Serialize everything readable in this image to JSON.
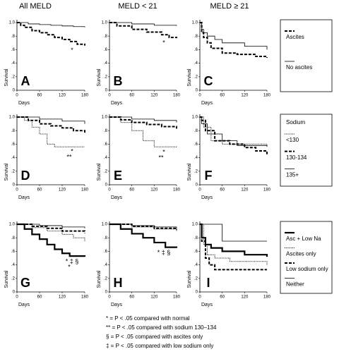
{
  "column_headers": [
    "All MELD",
    "MELD < 21",
    "MELD ≥ 21"
  ],
  "footnotes": [
    "* = P < .05 compared with normal",
    "** = P < .05 compared with sodium 130–134",
    "§ = P < .05 compared with ascites only",
    "‡ = P < .05 compared with low sodium only"
  ],
  "chart_data": [
    {
      "type": "step",
      "title": "A",
      "y_label": "Survival",
      "x_label": "Days",
      "xlim": [
        0,
        180
      ],
      "xticks": [
        0,
        60,
        120,
        180
      ],
      "ylim": [
        0,
        1
      ],
      "yticks": [
        0,
        {
          "value": 0.2,
          "label": ".2"
        },
        {
          "value": 0.4,
          "label": ".4"
        },
        {
          "value": 0.6,
          "label": ".6"
        },
        {
          "value": 0.8,
          "label": ".8"
        },
        {
          "value": 1,
          "label": "1.0"
        }
      ],
      "annotations": [
        "*"
      ],
      "series": [
        {
          "name": "Ascites",
          "color": "#000",
          "style": "dashed",
          "x": [
            0,
            10,
            20,
            40,
            60,
            80,
            100,
            120,
            140,
            160,
            180
          ],
          "values": [
            1,
            0.96,
            0.93,
            0.88,
            0.85,
            0.82,
            0.78,
            0.75,
            0.72,
            0.68,
            0.66
          ]
        },
        {
          "name": "No ascites",
          "color": "#000",
          "style": "solid",
          "x": [
            0,
            30,
            60,
            90,
            120,
            150,
            180
          ],
          "values": [
            1,
            0.98,
            0.97,
            0.96,
            0.95,
            0.94,
            0.93
          ]
        }
      ]
    },
    {
      "type": "step",
      "title": "B",
      "y_label": "Survival",
      "x_label": "Days",
      "xlim": [
        0,
        180
      ],
      "xticks": [
        0,
        60,
        120,
        180
      ],
      "ylim": [
        0,
        1
      ],
      "yticks": [
        0,
        {
          "value": 0.2,
          "label": ".2"
        },
        {
          "value": 0.4,
          "label": ".4"
        },
        {
          "value": 0.6,
          "label": ".6"
        },
        {
          "value": 0.8,
          "label": ".8"
        },
        {
          "value": 1,
          "label": "1.0"
        }
      ],
      "annotations": [
        "*"
      ],
      "series": [
        {
          "name": "Ascites",
          "color": "#000",
          "style": "dashed",
          "x": [
            0,
            20,
            60,
            100,
            140,
            160,
            180
          ],
          "values": [
            1,
            0.95,
            0.9,
            0.86,
            0.82,
            0.78,
            0.77
          ]
        },
        {
          "name": "No ascites",
          "color": "#000",
          "style": "solid",
          "x": [
            0,
            60,
            120,
            180
          ],
          "values": [
            1,
            0.98,
            0.96,
            0.95
          ]
        }
      ]
    },
    {
      "type": "step",
      "title": "C",
      "y_label": "Survival",
      "x_label": "Days",
      "xlim": [
        0,
        180
      ],
      "xticks": [
        0,
        60,
        120,
        180
      ],
      "ylim": [
        0,
        1
      ],
      "yticks": [
        0,
        {
          "value": 0.2,
          "label": ".2"
        },
        {
          "value": 0.4,
          "label": ".4"
        },
        {
          "value": 0.6,
          "label": ".6"
        },
        {
          "value": 0.8,
          "label": ".8"
        },
        {
          "value": 1,
          "label": "1.0"
        }
      ],
      "legend": "right",
      "series": [
        {
          "name": "Ascites",
          "color": "#000",
          "style": "dashed",
          "x": [
            0,
            5,
            10,
            20,
            30,
            60,
            100,
            150,
            180
          ],
          "values": [
            1,
            0.85,
            0.78,
            0.7,
            0.62,
            0.55,
            0.53,
            0.5,
            0.48
          ]
        },
        {
          "name": "No ascites",
          "color": "#000",
          "style": "solid",
          "x": [
            0,
            5,
            10,
            20,
            40,
            60,
            120,
            180
          ],
          "values": [
            1,
            0.9,
            0.85,
            0.8,
            0.75,
            0.7,
            0.65,
            0.6
          ]
        }
      ]
    },
    {
      "type": "step",
      "title": "D",
      "y_label": "Survival",
      "x_label": "Days",
      "xlim": [
        0,
        180
      ],
      "xticks": [
        0,
        60,
        120,
        180
      ],
      "ylim": [
        0,
        1
      ],
      "yticks": [
        0,
        {
          "value": 0.2,
          "label": ".2"
        },
        {
          "value": 0.4,
          "label": ".4"
        },
        {
          "value": 0.6,
          "label": ".6"
        },
        {
          "value": 0.8,
          "label": ".8"
        },
        {
          "value": 1,
          "label": "1.0"
        }
      ],
      "annotations": [
        "*",
        "**"
      ],
      "series": [
        {
          "name": "<130",
          "color": "#000",
          "style": "dotted",
          "x": [
            0,
            20,
            40,
            60,
            80,
            100,
            180
          ],
          "values": [
            1,
            0.95,
            0.85,
            0.75,
            0.6,
            0.56,
            0.56
          ]
        },
        {
          "name": "130-134",
          "color": "#000",
          "style": "dashed",
          "x": [
            0,
            30,
            60,
            90,
            120,
            150,
            180
          ],
          "values": [
            1,
            0.95,
            0.9,
            0.87,
            0.84,
            0.8,
            0.77
          ]
        },
        {
          "name": "135+",
          "color": "#000",
          "style": "solid",
          "x": [
            0,
            60,
            120,
            180
          ],
          "values": [
            1,
            0.97,
            0.94,
            0.9
          ]
        }
      ]
    },
    {
      "type": "step",
      "title": "E",
      "y_label": "Survival",
      "x_label": "Days",
      "xlim": [
        0,
        180
      ],
      "xticks": [
        0,
        60,
        120,
        180
      ],
      "ylim": [
        0,
        1
      ],
      "yticks": [
        0,
        {
          "value": 0.2,
          "label": ".2"
        },
        {
          "value": 0.4,
          "label": ".4"
        },
        {
          "value": 0.6,
          "label": ".6"
        },
        {
          "value": 0.8,
          "label": ".8"
        },
        {
          "value": 1,
          "label": "1.0"
        }
      ],
      "annotations": [
        "*",
        "**"
      ],
      "series": [
        {
          "name": "<130",
          "color": "#000",
          "style": "dotted",
          "x": [
            0,
            30,
            60,
            90,
            120,
            180
          ],
          "values": [
            1,
            0.92,
            0.8,
            0.65,
            0.56,
            0.55
          ]
        },
        {
          "name": "130-134",
          "color": "#000",
          "style": "dashed",
          "x": [
            0,
            30,
            60,
            100,
            140,
            180
          ],
          "values": [
            1,
            0.96,
            0.92,
            0.89,
            0.86,
            0.83
          ]
        },
        {
          "name": "135+",
          "color": "#000",
          "style": "solid",
          "x": [
            0,
            60,
            120,
            180
          ],
          "values": [
            1,
            0.97,
            0.95,
            0.92
          ]
        }
      ]
    },
    {
      "type": "step",
      "title": "F",
      "y_label": "Survival",
      "x_label": "Days",
      "xlim": [
        0,
        180
      ],
      "xticks": [
        0,
        60,
        120,
        180
      ],
      "ylim": [
        0,
        1
      ],
      "yticks": [
        0,
        {
          "value": 0.2,
          "label": ".2"
        },
        {
          "value": 0.4,
          "label": ".4"
        },
        {
          "value": 0.6,
          "label": ".6"
        },
        {
          "value": 0.8,
          "label": ".8"
        },
        {
          "value": 1,
          "label": "1.0"
        }
      ],
      "legend": "right",
      "legend_title": "Sodium",
      "series": [
        {
          "name": "<130",
          "color": "#000",
          "style": "dotted",
          "x": [
            0,
            10,
            30,
            60,
            180
          ],
          "values": [
            1,
            0.85,
            0.65,
            0.6,
            0.58
          ]
        },
        {
          "name": "130-134",
          "color": "#000",
          "style": "dashed",
          "x": [
            0,
            5,
            15,
            40,
            80,
            120,
            150,
            180
          ],
          "values": [
            1,
            0.95,
            0.8,
            0.65,
            0.6,
            0.55,
            0.5,
            0.45
          ]
        },
        {
          "name": "135+",
          "color": "#000",
          "style": "solid",
          "x": [
            0,
            5,
            20,
            60,
            100,
            180
          ],
          "values": [
            1,
            0.9,
            0.75,
            0.65,
            0.58,
            0.56
          ]
        }
      ]
    },
    {
      "type": "step",
      "title": "G",
      "y_label": "Survival",
      "x_label": "Days",
      "xlim": [
        0,
        180
      ],
      "xticks": [
        0,
        60,
        120,
        180
      ],
      "ylim": [
        0,
        1
      ],
      "yticks": [
        0,
        {
          "value": 0.2,
          "label": ".2"
        },
        {
          "value": 0.4,
          "label": ".4"
        },
        {
          "value": 0.6,
          "label": ".6"
        },
        {
          "value": 0.8,
          "label": ".8"
        },
        {
          "value": 1,
          "label": "1.0"
        }
      ],
      "annotations": [
        "* ‡ §",
        "*"
      ],
      "series": [
        {
          "name": "Asc + Low Na",
          "color": "#000",
          "style": "thick",
          "x": [
            0,
            20,
            40,
            60,
            80,
            100,
            120,
            140,
            180
          ],
          "values": [
            1,
            0.93,
            0.85,
            0.78,
            0.7,
            0.63,
            0.57,
            0.53,
            0.52
          ]
        },
        {
          "name": "Ascites only",
          "color": "#000",
          "style": "dotted",
          "x": [
            0,
            40,
            80,
            120,
            150,
            180
          ],
          "values": [
            1,
            0.95,
            0.9,
            0.85,
            0.8,
            0.74
          ]
        },
        {
          "name": "Low sodium only",
          "color": "#000",
          "style": "dashed",
          "x": [
            0,
            40,
            80,
            120,
            180
          ],
          "values": [
            1,
            0.97,
            0.94,
            0.9,
            0.87
          ]
        },
        {
          "name": "Neither",
          "color": "#000",
          "style": "solid",
          "x": [
            0,
            60,
            120,
            180
          ],
          "values": [
            1,
            0.98,
            0.96,
            0.94
          ]
        }
      ]
    },
    {
      "type": "step",
      "title": "H",
      "y_label": "Survival",
      "x_label": "Days",
      "xlim": [
        0,
        180
      ],
      "xticks": [
        0,
        60,
        120,
        180
      ],
      "ylim": [
        0,
        1
      ],
      "yticks": [
        0,
        {
          "value": 0.2,
          "label": ".2"
        },
        {
          "value": 0.4,
          "label": ".4"
        },
        {
          "value": 0.6,
          "label": ".6"
        },
        {
          "value": 0.8,
          "label": ".8"
        },
        {
          "value": 1,
          "label": "1.0"
        }
      ],
      "annotations": [
        "* ‡ §"
      ],
      "series": [
        {
          "name": "Asc + Low Na",
          "color": "#000",
          "style": "thick",
          "x": [
            0,
            30,
            60,
            90,
            120,
            150,
            180
          ],
          "values": [
            1,
            0.93,
            0.86,
            0.8,
            0.73,
            0.66,
            0.65
          ]
        },
        {
          "name": "Ascites only",
          "color": "#000",
          "style": "dotted",
          "x": [
            0,
            60,
            120,
            180
          ],
          "values": [
            1,
            0.96,
            0.93,
            0.9
          ]
        },
        {
          "name": "Low sodium only",
          "color": "#000",
          "style": "dashed",
          "x": [
            0,
            60,
            120,
            180
          ],
          "values": [
            1,
            0.97,
            0.94,
            0.92
          ]
        },
        {
          "name": "Neither",
          "color": "#000",
          "style": "solid",
          "x": [
            0,
            60,
            120,
            180
          ],
          "values": [
            1,
            0.98,
            0.96,
            0.94
          ]
        }
      ]
    },
    {
      "type": "step",
      "title": "I",
      "y_label": "Survival",
      "x_label": "Days",
      "xlim": [
        0,
        180
      ],
      "xticks": [
        0,
        60,
        120,
        180
      ],
      "ylim": [
        0,
        1
      ],
      "yticks": [
        0,
        {
          "value": 0.2,
          "label": ".2"
        },
        {
          "value": 0.4,
          "label": ".4"
        },
        {
          "value": 0.6,
          "label": ".6"
        },
        {
          "value": 0.8,
          "label": ".8"
        },
        {
          "value": 1,
          "label": "1.0"
        }
      ],
      "legend": "right",
      "series": [
        {
          "name": "Asc + Low Na",
          "color": "#000",
          "style": "thick",
          "x": [
            0,
            5,
            15,
            30,
            60,
            120,
            180
          ],
          "values": [
            1,
            0.8,
            0.7,
            0.65,
            0.6,
            0.55,
            0.52
          ]
        },
        {
          "name": "Ascites only",
          "color": "#000",
          "style": "dotted",
          "x": [
            0,
            10,
            20,
            40,
            80,
            180
          ],
          "values": [
            1,
            0.7,
            0.55,
            0.5,
            0.45,
            0.4
          ]
        },
        {
          "name": "Low sodium only",
          "color": "#000",
          "style": "dashed",
          "x": [
            0,
            5,
            15,
            25,
            40,
            180
          ],
          "values": [
            1,
            0.75,
            0.5,
            0.4,
            0.33,
            0.33
          ]
        },
        {
          "name": "Neither",
          "color": "#000",
          "style": "solid",
          "x": [
            0,
            30,
            60,
            180
          ],
          "values": [
            1,
            1,
            0.75,
            0.75
          ]
        }
      ]
    }
  ]
}
